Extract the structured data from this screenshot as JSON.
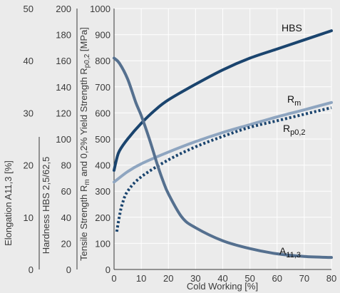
{
  "chart_data": {
    "type": "line",
    "xlabel": "Cold Working [%]",
    "x_ticks": [
      0,
      10,
      20,
      30,
      40,
      50,
      60,
      70,
      80
    ],
    "xlim": [
      0,
      80
    ],
    "grid": true,
    "axes": {
      "strength": {
        "label": "Tensile Strength Rm and 0,2% Yield Strength Rp0,2 [MPa]",
        "ylim": [
          0,
          1000
        ],
        "ticks": [
          0,
          100,
          200,
          300,
          400,
          500,
          600,
          700,
          800,
          900,
          1000
        ]
      },
      "hardness": {
        "label": "Hardness HBS 2,5/62,5",
        "ylim": [
          0,
          200
        ],
        "ticks": [
          0,
          20,
          40,
          60,
          80,
          100,
          120,
          140,
          160,
          180,
          200
        ]
      },
      "elongation": {
        "label": "Elongation A11,3 [%]",
        "ylim": [
          0,
          50
        ],
        "ticks": [
          0,
          10,
          20,
          30,
          40,
          50
        ]
      }
    },
    "series": [
      {
        "name": "HBS",
        "axis": "hardness",
        "color": "#1a446e",
        "style": "solid",
        "x": [
          0,
          1,
          2,
          5,
          10,
          15,
          20,
          30,
          40,
          50,
          60,
          70,
          80
        ],
        "y": [
          76,
          85,
          91,
          100,
          112,
          122,
          130,
          142,
          153,
          162,
          169,
          176,
          183
        ]
      },
      {
        "name": "Rm",
        "axis": "strength",
        "color": "#8ea5c0",
        "style": "solid",
        "x": [
          0,
          5,
          10,
          20,
          30,
          40,
          50,
          60,
          70,
          80
        ],
        "y": [
          335,
          375,
          405,
          450,
          490,
          525,
          555,
          585,
          612,
          640
        ]
      },
      {
        "name": "Rp0,2",
        "axis": "strength",
        "color": "#1a446e",
        "style": "dotted",
        "x": [
          1,
          2,
          3,
          5,
          10,
          20,
          30,
          40,
          50,
          60,
          70,
          80
        ],
        "y": [
          145,
          205,
          250,
          300,
          355,
          420,
          470,
          510,
          545,
          570,
          595,
          620
        ]
      },
      {
        "name": "A11,3",
        "axis": "elongation",
        "color": "#55708f",
        "style": "solid",
        "x": [
          0,
          2,
          5,
          8,
          10,
          13,
          16,
          18,
          20,
          25,
          30,
          40,
          50,
          60,
          70,
          80
        ],
        "y": [
          40.5,
          39.5,
          36.5,
          32,
          29.5,
          25,
          20,
          17,
          14.5,
          10,
          8,
          5.5,
          4,
          3,
          2.5,
          2.3
        ]
      }
    ],
    "labels": {
      "HBS": {
        "main": "HBS",
        "sub": ""
      },
      "Rm": {
        "main": "R",
        "sub": "m"
      },
      "Rp0,2": {
        "main": "R",
        "sub": "p0,2"
      },
      "A11,3": {
        "main": "A",
        "sub": "11,3"
      }
    }
  }
}
